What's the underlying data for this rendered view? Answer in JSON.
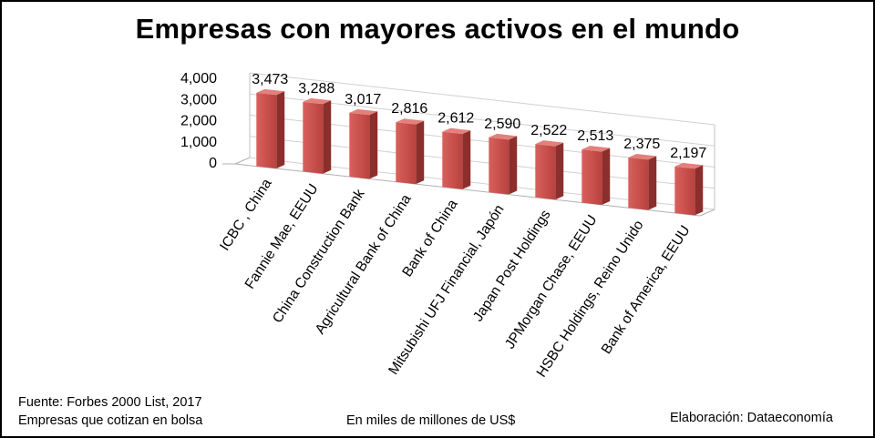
{
  "chart_data": {
    "type": "bar",
    "title": "Empresas con mayores activos en el mundo",
    "categories": [
      "ICBC , China",
      "Fannie Mae, EEUU",
      "China Construction Bank",
      "Agricultural Bank of China",
      "Bank of China",
      "Mitsubishi UFJ Financial, Japón",
      "Japan Post Holdings",
      "JPMorgan Chase, EEUU",
      "HSBC Holdings, Reino Unido",
      "Bank of America, EEUU"
    ],
    "values": [
      3473,
      3288,
      3017,
      2816,
      2612,
      2590,
      2522,
      2513,
      2375,
      2197
    ],
    "value_labels": [
      "3,473",
      "3,288",
      "3,017",
      "2,816",
      "2,612",
      "2,590",
      "2,522",
      "2,513",
      "2,375",
      "2,197"
    ],
    "yticks": [
      "0",
      "1,000",
      "2,000",
      "3,000",
      "4,000"
    ],
    "ylim": [
      0,
      4000
    ],
    "bar_color": "#c0504d",
    "grid": true,
    "style": "3d-perspective"
  },
  "footer": {
    "source": "Fuente:  Forbes 2000 List, 2017",
    "note": "Empresas que cotizan en bolsa",
    "units": "En miles de millones de US$",
    "credit": "Elaboración: Dataeconomía"
  }
}
